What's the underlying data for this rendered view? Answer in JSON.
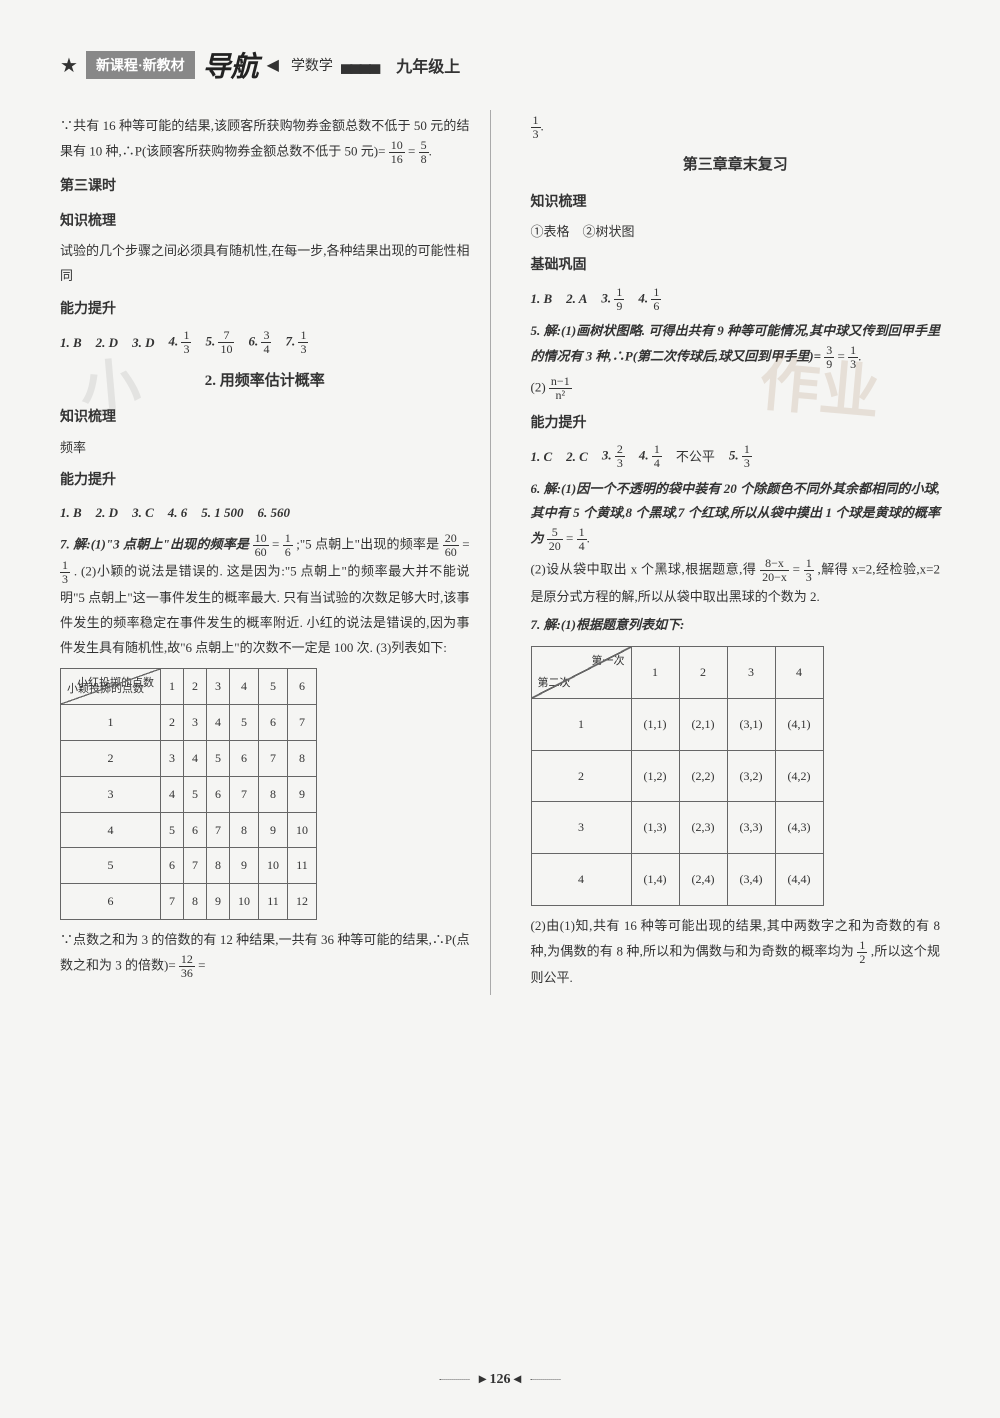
{
  "header": {
    "badge": "新课程·新教材",
    "logo": "导航",
    "subject": "学数学",
    "grade": "九年级上"
  },
  "left": {
    "intro_p1": "∵共有 16 种等可能的结果,该顾客所获购物券金额总数不低于 50 元的结果有 10 种,∴P(该顾客所获购物券金额总数不低于 50 元)=",
    "intro_frac1_n": "10",
    "intro_frac1_d": "16",
    "intro_frac2_n": "5",
    "intro_frac2_d": "8",
    "lesson3_title": "第三课时",
    "zhishi_title": "知识梳理",
    "zhishi_text": "试验的几个步骤之间必须具有随机性,在每一步,各种结果出现的可能性相同",
    "nengli_title": "能力提升",
    "ans": [
      "1. B",
      "2. D",
      "3. D",
      "4.",
      "5.",
      "6.",
      "7."
    ],
    "f4n": "1",
    "f4d": "3",
    "f5n": "7",
    "f5d": "10",
    "f6n": "3",
    "f6d": "4",
    "f7n": "1",
    "f7d": "3",
    "section2_title": "2. 用频率估计概率",
    "zhishi2_title": "知识梳理",
    "freq_label": "频率",
    "nengli2_title": "能力提升",
    "row2": [
      "1. B",
      "2. D",
      "3. C",
      "4. 6",
      "5. 1 500",
      "6. 560"
    ],
    "q7_line1": "7. 解:(1)\"3 点朝上\"出现的频率是",
    "q7_f1n": "10",
    "q7_f1d": "60",
    "q7_f2n": "1",
    "q7_f2d": "6",
    "q7_mid": ";\"5 点朝上\"出现的频率是",
    "q7_f3n": "20",
    "q7_f3d": "60",
    "q7_f4n": "1",
    "q7_f4d": "3",
    "q7_rest": ". (2)小颖的说法是错误的. 这是因为:\"5 点朝上\"的频率最大并不能说明\"5 点朝上\"这一事件发生的概率最大. 只有当试验的次数足够大时,该事件发生的频率稳定在事件发生的概率附近. 小红的说法是错误的,因为事件发生具有随机性,故\"6 点朝上\"的次数不一定是 100 次. (3)列表如下:",
    "table1": {
      "diag_top": "小红投掷的点数",
      "diag_bot": "小颖投掷的点数",
      "cols": [
        "1",
        "2",
        "3",
        "4",
        "5",
        "6"
      ],
      "rows": [
        {
          "h": "1",
          "v": [
            "2",
            "3",
            "4",
            "5",
            "6",
            "7"
          ]
        },
        {
          "h": "2",
          "v": [
            "3",
            "4",
            "5",
            "6",
            "7",
            "8"
          ]
        },
        {
          "h": "3",
          "v": [
            "4",
            "5",
            "6",
            "7",
            "8",
            "9"
          ]
        },
        {
          "h": "4",
          "v": [
            "5",
            "6",
            "7",
            "8",
            "9",
            "10"
          ]
        },
        {
          "h": "5",
          "v": [
            "6",
            "7",
            "8",
            "9",
            "10",
            "11"
          ]
        },
        {
          "h": "6",
          "v": [
            "7",
            "8",
            "9",
            "10",
            "11",
            "12"
          ]
        }
      ]
    },
    "after_t1": "∵点数之和为 3 的倍数的有 12 种结果,一共有 36 种等可能的结果,∴P(点数之和为 3 的倍数)=",
    "at1_fn": "12",
    "at1_fd": "36"
  },
  "right": {
    "top_frac_n": "1",
    "top_frac_d": "3",
    "ch3_title": "第三章章末复习",
    "zhishi_title": "知识梳理",
    "zhishi_items": "①表格　②树状图",
    "jichu_title": "基础巩固",
    "jichu_ans": [
      "1. B",
      "2. A",
      "3.",
      "4."
    ],
    "j3n": "1",
    "j3d": "9",
    "j4n": "1",
    "j4d": "6",
    "q5_text": "5. 解:(1)画树状图略. 可得出共有 9 种等可能情况,其中球又传到回甲手里的情况有 3 种,∴P(第二次传球后,球又回到甲手里)=",
    "q5_f1n": "3",
    "q5_f1d": "9",
    "q5_f2n": "1",
    "q5_f2d": "3",
    "q5_p2": "(2)",
    "q5_f3t": "n−1",
    "q5_f3b": "n²",
    "nengli_title": "能力提升",
    "nl_ans": [
      "1. C",
      "2. C",
      "3.",
      "4.",
      "不公平",
      "5."
    ],
    "nl3n": "2",
    "nl3d": "3",
    "nl4n": "1",
    "nl4d": "4",
    "nl5n": "1",
    "nl5d": "3",
    "q6_p1": "6. 解:(1)因一个不透明的袋中装有 20 个除颜色不同外其余都相同的小球,其中有 5 个黄球,8 个黑球,7 个红球,所以从袋中摸出 1 个球是黄球的概率为",
    "q6_f1n": "5",
    "q6_f1d": "20",
    "q6_f2n": "1",
    "q6_f2d": "4",
    "q6_p2": "(2)设从袋中取出 x 个黑球,根据题意,得",
    "q6_f3t": "8−x",
    "q6_f3b": "20−x",
    "q6_f4n": "1",
    "q6_f4d": "3",
    "q6_p3": ",解得 x=2,经检验,x=2 是原分式方程的解,所以从袋中取出黑球的个数为 2.",
    "q7_intro": "7. 解:(1)根据题意列表如下:",
    "table2": {
      "diag_top": "第一次",
      "diag_bot": "第二次",
      "cols": [
        "1",
        "2",
        "3",
        "4"
      ],
      "rows": [
        {
          "h": "1",
          "v": [
            "(1,1)",
            "(2,1)",
            "(3,1)",
            "(4,1)"
          ]
        },
        {
          "h": "2",
          "v": [
            "(1,2)",
            "(2,2)",
            "(3,2)",
            "(4,2)"
          ]
        },
        {
          "h": "3",
          "v": [
            "(1,3)",
            "(2,3)",
            "(3,3)",
            "(4,3)"
          ]
        },
        {
          "h": "4",
          "v": [
            "(1,4)",
            "(2,4)",
            "(3,4)",
            "(4,4)"
          ]
        }
      ]
    },
    "q7_after": "(2)由(1)知,共有 16 种等可能出现的结果,其中两数字之和为奇数的有 8 种,为偶数的有 8 种,所以和为偶数与和为奇数的概率均为",
    "q7_fn": "1",
    "q7_fd": "2",
    "q7_end": ",所以这个规则公平."
  },
  "page_num": "126",
  "watermark1": "小",
  "watermark2": "作业"
}
